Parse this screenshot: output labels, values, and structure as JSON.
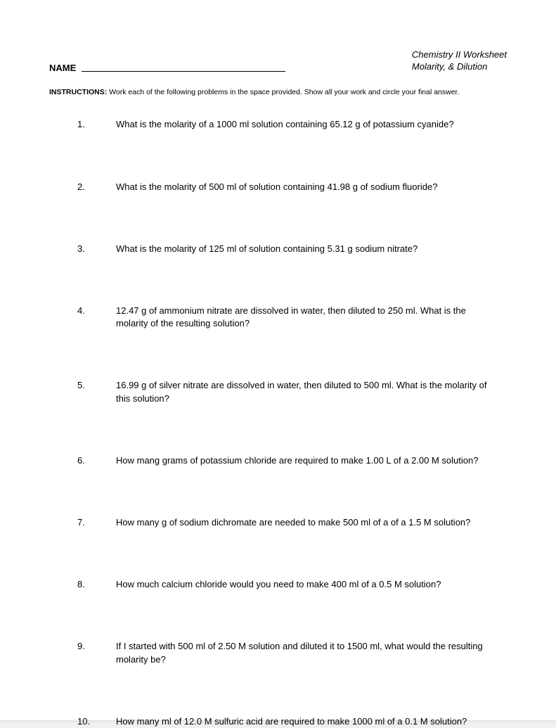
{
  "header": {
    "name_label": "NAME",
    "worksheet_title": "Chemistry II Worksheet",
    "worksheet_subtitle": "Molarity, & Dilution"
  },
  "instructions": {
    "label": "INSTRUCTIONS:",
    "text": "Work each of the following problems in the space provided.  Show all your work and circle your final answer."
  },
  "questions": [
    {
      "number": "1.",
      "text": "What is the molarity of a 1000 ml solution containing 65.12 g of potassium cyanide?"
    },
    {
      "number": "2.",
      "text": "What is the molarity of 500 ml of solution containing 41.98 g of sodium fluoride?"
    },
    {
      "number": "3.",
      "text": "What is the molarity of 125 ml of solution containing 5.31 g sodium nitrate?"
    },
    {
      "number": "4.",
      "text": "12.47 g of ammonium nitrate are dissolved in water, then diluted to 250 ml. What is the molarity of the resulting solution?"
    },
    {
      "number": "5.",
      "text": "16.99 g of silver nitrate are dissolved in water, then diluted to 500 ml. What is the molarity of this solution?"
    },
    {
      "number": "6.",
      "text": "How mang grams of potassium chloride are required to make 1.00 L of a 2.00 M solution?"
    },
    {
      "number": "7.",
      "text": "How many g of sodium dichromate are needed to make 500 ml of a of a 1.5 M solution?"
    },
    {
      "number": "8.",
      "text": "How much calcium chloride would you need to make 400 ml of a 0.5 M solution?"
    },
    {
      "number": "9.",
      "text": "If I started with 500 ml of 2.50 M solution and diluted it to 1500 ml, what would the resulting molarity be?"
    },
    {
      "number": "10.",
      "text": "How many ml of 12.0 M sulfuric acid are required to make 1000 ml of a 0.1 M solution?"
    }
  ],
  "colors": {
    "background": "#f0f0f0",
    "page": "#ffffff",
    "text": "#000000"
  }
}
